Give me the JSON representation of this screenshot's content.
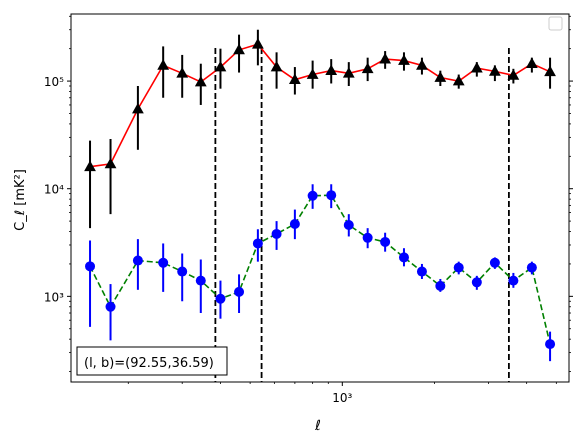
{
  "chart_data": {
    "type": "line",
    "xlabel": "ℓ",
    "ylabel": "C_ℓ  [mK²]",
    "x_scale": "log",
    "y_scale": "log",
    "xlim": [
      130,
      5500
    ],
    "ylim": [
      160,
      420000
    ],
    "x_major_ticks": [
      {
        "value": 1000,
        "label": "10³"
      }
    ],
    "y_major_ticks": [
      {
        "value": 1000,
        "label": "10³"
      },
      {
        "value": 10000,
        "label": "10⁴"
      },
      {
        "value": 100000,
        "label": "10⁵"
      }
    ],
    "vertical_dashed_lines": [
      385,
      545,
      3500
    ],
    "annotation": "(l, b)=(92.55,36.59)",
    "legend": {
      "placement": "upper-right",
      "entries": []
    },
    "series": [
      {
        "color": "#ff0000",
        "marker": "triangle",
        "marker_color": "#000000",
        "errorbar_color": "#000000",
        "linestyle": "solid",
        "points": [
          {
            "x": 150,
            "y": 16000,
            "lo": 4300,
            "hi": 28000
          },
          {
            "x": 175,
            "y": 17000,
            "lo": 5800,
            "hi": 29000
          },
          {
            "x": 215,
            "y": 55000,
            "lo": 23000,
            "hi": 90000
          },
          {
            "x": 260,
            "y": 140000,
            "lo": 70000,
            "hi": 210000
          },
          {
            "x": 300,
            "y": 118000,
            "lo": 70000,
            "hi": 175000
          },
          {
            "x": 345,
            "y": 98000,
            "lo": 60000,
            "hi": 145000
          },
          {
            "x": 400,
            "y": 135000,
            "lo": 85000,
            "hi": 200000
          },
          {
            "x": 460,
            "y": 195000,
            "lo": 120000,
            "hi": 270000
          },
          {
            "x": 530,
            "y": 220000,
            "lo": 140000,
            "hi": 300000
          },
          {
            "x": 610,
            "y": 135000,
            "lo": 85000,
            "hi": 185000
          },
          {
            "x": 700,
            "y": 103000,
            "lo": 75000,
            "hi": 135000
          },
          {
            "x": 800,
            "y": 115000,
            "lo": 85000,
            "hi": 155000
          },
          {
            "x": 920,
            "y": 125000,
            "lo": 95000,
            "hi": 160000
          },
          {
            "x": 1050,
            "y": 118000,
            "lo": 90000,
            "hi": 150000
          },
          {
            "x": 1210,
            "y": 130000,
            "lo": 100000,
            "hi": 165000
          },
          {
            "x": 1380,
            "y": 160000,
            "lo": 130000,
            "hi": 190000
          },
          {
            "x": 1590,
            "y": 155000,
            "lo": 125000,
            "hi": 185000
          },
          {
            "x": 1820,
            "y": 140000,
            "lo": 115000,
            "hi": 165000
          },
          {
            "x": 2090,
            "y": 108000,
            "lo": 90000,
            "hi": 125000
          },
          {
            "x": 2400,
            "y": 100000,
            "lo": 85000,
            "hi": 115000
          },
          {
            "x": 2750,
            "y": 132000,
            "lo": 110000,
            "hi": 150000
          },
          {
            "x": 3150,
            "y": 123000,
            "lo": 100000,
            "hi": 140000
          },
          {
            "x": 3620,
            "y": 113000,
            "lo": 95000,
            "hi": 130000
          },
          {
            "x": 4160,
            "y": 145000,
            "lo": 120000,
            "hi": 165000
          },
          {
            "x": 4770,
            "y": 122000,
            "lo": 85000,
            "hi": 165000
          }
        ]
      },
      {
        "color": "#008000",
        "marker": "circle",
        "marker_color": "#0000ff",
        "errorbar_color": "#0000ff",
        "linestyle": "dashed",
        "points": [
          {
            "x": 150,
            "y": 1900,
            "lo": 520,
            "hi": 3300
          },
          {
            "x": 175,
            "y": 800,
            "lo": 390,
            "hi": 1300
          },
          {
            "x": 215,
            "y": 2150,
            "lo": 1150,
            "hi": 3400
          },
          {
            "x": 260,
            "y": 2050,
            "lo": 1100,
            "hi": 3100
          },
          {
            "x": 300,
            "y": 1700,
            "lo": 900,
            "hi": 2500
          },
          {
            "x": 345,
            "y": 1400,
            "lo": 700,
            "hi": 2200
          },
          {
            "x": 400,
            "y": 950,
            "lo": 620,
            "hi": 1400
          },
          {
            "x": 460,
            "y": 1100,
            "lo": 700,
            "hi": 1600
          },
          {
            "x": 530,
            "y": 3100,
            "lo": 2100,
            "hi": 4200
          },
          {
            "x": 610,
            "y": 3800,
            "lo": 2700,
            "hi": 5000
          },
          {
            "x": 700,
            "y": 4700,
            "lo": 3400,
            "hi": 6400
          },
          {
            "x": 800,
            "y": 8600,
            "lo": 6500,
            "hi": 11000
          },
          {
            "x": 920,
            "y": 8700,
            "lo": 6600,
            "hi": 11000
          },
          {
            "x": 1050,
            "y": 4600,
            "lo": 3600,
            "hi": 5800
          },
          {
            "x": 1210,
            "y": 3500,
            "lo": 2800,
            "hi": 4300
          },
          {
            "x": 1380,
            "y": 3200,
            "lo": 2600,
            "hi": 3900
          },
          {
            "x": 1590,
            "y": 2300,
            "lo": 1900,
            "hi": 2800
          },
          {
            "x": 1820,
            "y": 1700,
            "lo": 1450,
            "hi": 2000
          },
          {
            "x": 2090,
            "y": 1250,
            "lo": 1100,
            "hi": 1450
          },
          {
            "x": 2400,
            "y": 1850,
            "lo": 1600,
            "hi": 2100
          },
          {
            "x": 2750,
            "y": 1350,
            "lo": 1150,
            "hi": 1550
          },
          {
            "x": 3150,
            "y": 2050,
            "lo": 1800,
            "hi": 2300
          },
          {
            "x": 3620,
            "y": 1400,
            "lo": 1200,
            "hi": 1650
          },
          {
            "x": 4160,
            "y": 1850,
            "lo": 1600,
            "hi": 2100
          },
          {
            "x": 4770,
            "y": 360,
            "lo": 250,
            "hi": 470
          }
        ]
      }
    ]
  }
}
